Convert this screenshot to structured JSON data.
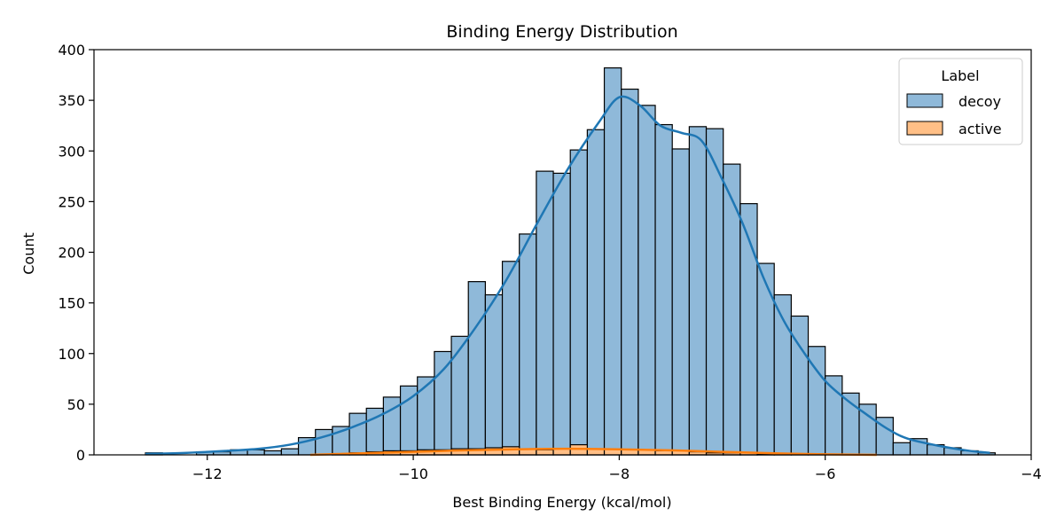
{
  "chart_data": {
    "type": "histogram",
    "title": "Binding Energy Distribution",
    "xlabel": "Best Binding Energy (kcal/mol)",
    "ylabel": "Count",
    "xlim": [
      -13.1,
      -4.0
    ],
    "ylim": [
      0,
      400
    ],
    "xticks": [
      -12,
      -10,
      -8,
      -6,
      -4
    ],
    "xtick_labels": [
      "−12",
      "−10",
      "−8",
      "−6",
      "−4"
    ],
    "yticks": [
      0,
      50,
      100,
      150,
      200,
      250,
      300,
      350,
      400
    ],
    "ytick_labels": [
      "0",
      "50",
      "100",
      "150",
      "200",
      "250",
      "300",
      "350",
      "400"
    ],
    "grid": false,
    "legend": {
      "title": "Label",
      "placement": "top-right"
    },
    "bin_edges_start": -12.6,
    "bin_width": 0.165,
    "series": [
      {
        "name": "decoy",
        "color": "#1f77b4",
        "bar_fill": "#8fb9d9",
        "counts": [
          2,
          0,
          0,
          3,
          3,
          5,
          5,
          4,
          6,
          17,
          25,
          28,
          41,
          46,
          57,
          68,
          77,
          102,
          117,
          171,
          158,
          191,
          218,
          280,
          278,
          301,
          321,
          382,
          361,
          345,
          326,
          302,
          324,
          322,
          287,
          248,
          189,
          158,
          137,
          107,
          78,
          61,
          50,
          37,
          12,
          16,
          10,
          7,
          4,
          2
        ],
        "kde": [
          [
            -12.6,
            1
          ],
          [
            -12.2,
            2
          ],
          [
            -11.8,
            4
          ],
          [
            -11.5,
            6
          ],
          [
            -11.2,
            10
          ],
          [
            -10.9,
            17
          ],
          [
            -10.6,
            27
          ],
          [
            -10.3,
            40
          ],
          [
            -10.0,
            58
          ],
          [
            -9.7,
            85
          ],
          [
            -9.4,
            125
          ],
          [
            -9.1,
            172
          ],
          [
            -8.8,
            228
          ],
          [
            -8.5,
            282
          ],
          [
            -8.2,
            328
          ],
          [
            -8.0,
            353
          ],
          [
            -7.8,
            345
          ],
          [
            -7.6,
            325
          ],
          [
            -7.4,
            318
          ],
          [
            -7.2,
            310
          ],
          [
            -7.0,
            272
          ],
          [
            -6.8,
            228
          ],
          [
            -6.6,
            175
          ],
          [
            -6.4,
            132
          ],
          [
            -6.2,
            100
          ],
          [
            -6.0,
            73
          ],
          [
            -5.8,
            55
          ],
          [
            -5.6,
            40
          ],
          [
            -5.4,
            26
          ],
          [
            -5.2,
            16
          ],
          [
            -4.9,
            9
          ],
          [
            -4.6,
            4
          ],
          [
            -4.4,
            2
          ]
        ]
      },
      {
        "name": "active",
        "color": "#ff7f0e",
        "bar_fill": "#ffbf86",
        "counts": [
          0,
          0,
          0,
          0,
          0,
          0,
          0,
          0,
          0,
          0,
          0,
          1,
          2,
          3,
          4,
          4,
          5,
          5,
          6,
          6,
          7,
          8,
          6,
          5,
          6,
          10,
          6,
          6,
          5,
          5,
          4,
          4,
          3,
          2,
          2,
          2,
          1,
          1,
          1,
          1,
          0,
          0,
          0,
          0,
          0,
          0,
          0,
          0,
          0,
          0
        ],
        "kde": [
          [
            -11.0,
            0
          ],
          [
            -10.5,
            1.5
          ],
          [
            -10.0,
            3
          ],
          [
            -9.5,
            4.5
          ],
          [
            -9.0,
            5.5
          ],
          [
            -8.5,
            6
          ],
          [
            -8.0,
            5.5
          ],
          [
            -7.5,
            4.5
          ],
          [
            -7.0,
            3
          ],
          [
            -6.5,
            1.5
          ],
          [
            -6.0,
            0.5
          ],
          [
            -5.5,
            0
          ]
        ]
      }
    ]
  }
}
